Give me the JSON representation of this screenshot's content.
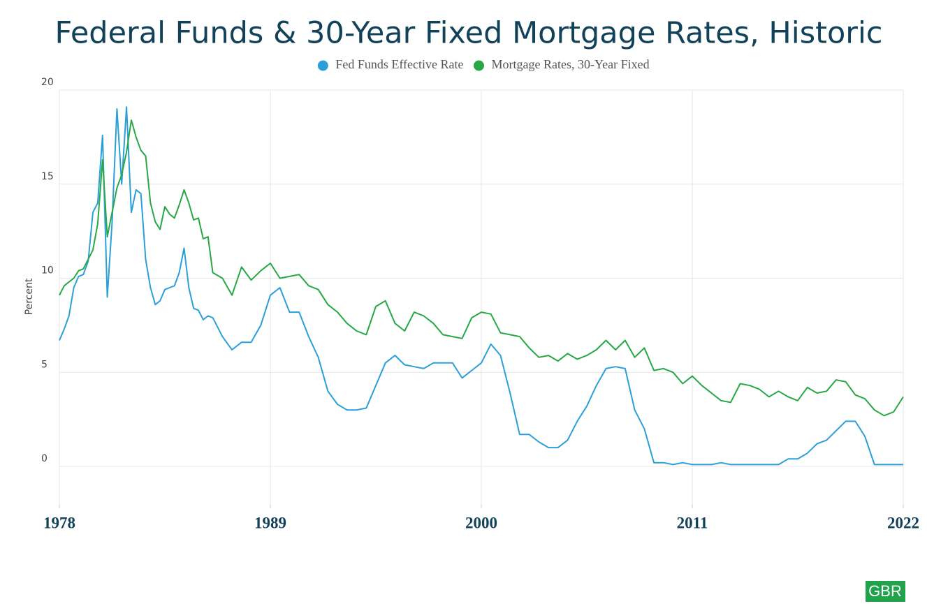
{
  "chart_data": {
    "type": "line",
    "title": "Federal Funds & 30-Year Fixed Mortgage Rates, Historic",
    "y_label": "Percent",
    "logo": "GBR",
    "xlim": [
      1978,
      2022
    ],
    "xticks": [
      1978,
      1989,
      2000,
      2011,
      2022
    ],
    "ylim": [
      -2,
      20
    ],
    "yticks": [
      0,
      5,
      10,
      15,
      20
    ],
    "grid": true,
    "legend": "top",
    "x": [
      1978,
      1978.25,
      1978.5,
      1978.75,
      1979,
      1979.25,
      1979.5,
      1979.75,
      1980,
      1980.25,
      1980.5,
      1980.75,
      1981,
      1981.25,
      1981.5,
      1981.75,
      1982,
      1982.25,
      1982.5,
      1982.75,
      1983,
      1983.25,
      1983.5,
      1983.75,
      1984,
      1984.25,
      1984.5,
      1984.75,
      1985,
      1985.25,
      1985.5,
      1985.75,
      1986,
      1986.5,
      1987,
      1987.5,
      1988,
      1988.5,
      1989,
      1989.5,
      1990,
      1990.5,
      1991,
      1991.5,
      1992,
      1992.5,
      1993,
      1993.5,
      1994,
      1994.5,
      1995,
      1995.5,
      1996,
      1996.5,
      1997,
      1997.5,
      1998,
      1998.5,
      1999,
      1999.5,
      2000,
      2000.5,
      2001,
      2001.5,
      2002,
      2002.5,
      2003,
      2003.5,
      2004,
      2004.5,
      2005,
      2005.5,
      2006,
      2006.5,
      2007,
      2007.5,
      2008,
      2008.5,
      2009,
      2009.5,
      2010,
      2010.5,
      2011,
      2011.5,
      2012,
      2012.5,
      2013,
      2013.5,
      2014,
      2014.5,
      2015,
      2015.5,
      2016,
      2016.5,
      2017,
      2017.5,
      2018,
      2018.5,
      2019,
      2019.5,
      2020,
      2020.5,
      2021,
      2021.5,
      2022
    ],
    "series": [
      {
        "name": "Fed Funds Effective Rate",
        "color": "#2b9fd8",
        "values": [
          6.7,
          7.3,
          8.0,
          9.5,
          10.1,
          10.2,
          10.9,
          13.5,
          14.0,
          17.6,
          9.0,
          13.0,
          19.0,
          15.0,
          19.1,
          13.5,
          14.7,
          14.5,
          11.0,
          9.5,
          8.6,
          8.8,
          9.4,
          9.5,
          9.6,
          10.3,
          11.6,
          9.5,
          8.4,
          8.3,
          7.8,
          8.0,
          7.9,
          6.9,
          6.2,
          6.6,
          6.6,
          7.5,
          9.1,
          9.5,
          8.2,
          8.2,
          6.9,
          5.8,
          4.0,
          3.3,
          3.0,
          3.0,
          3.1,
          4.3,
          5.5,
          5.9,
          5.4,
          5.3,
          5.2,
          5.5,
          5.5,
          5.5,
          4.7,
          5.1,
          5.5,
          6.5,
          5.9,
          3.9,
          1.7,
          1.7,
          1.3,
          1.0,
          1.0,
          1.4,
          2.4,
          3.2,
          4.3,
          5.2,
          5.3,
          5.2,
          3.0,
          2.0,
          0.2,
          0.2,
          0.1,
          0.2,
          0.1,
          0.1,
          0.1,
          0.2,
          0.1,
          0.1,
          0.1,
          0.1,
          0.1,
          0.1,
          0.4,
          0.4,
          0.7,
          1.2,
          1.4,
          1.9,
          2.4,
          2.4,
          1.6,
          0.1,
          0.1,
          0.1,
          0.1
        ]
      },
      {
        "name": "Mortgage Rates, 30-Year Fixed",
        "color": "#27a844",
        "values": [
          9.1,
          9.6,
          9.8,
          10.0,
          10.4,
          10.5,
          11.0,
          11.5,
          12.9,
          16.3,
          12.2,
          13.5,
          14.8,
          15.5,
          16.7,
          18.4,
          17.5,
          16.8,
          16.5,
          14.0,
          13.0,
          12.6,
          13.8,
          13.4,
          13.2,
          13.9,
          14.7,
          14.0,
          13.1,
          13.2,
          12.1,
          12.2,
          10.3,
          10.0,
          9.1,
          10.6,
          9.9,
          10.4,
          10.8,
          10.0,
          10.1,
          10.2,
          9.6,
          9.4,
          8.6,
          8.2,
          7.6,
          7.2,
          7.0,
          8.5,
          8.8,
          7.6,
          7.2,
          8.2,
          8.0,
          7.6,
          7.0,
          6.9,
          6.8,
          7.9,
          8.2,
          8.1,
          7.1,
          7.0,
          6.9,
          6.3,
          5.8,
          5.9,
          5.6,
          6.0,
          5.7,
          5.9,
          6.2,
          6.7,
          6.2,
          6.7,
          5.8,
          6.3,
          5.1,
          5.2,
          5.0,
          4.4,
          4.8,
          4.3,
          3.9,
          3.5,
          3.4,
          4.4,
          4.3,
          4.1,
          3.7,
          4.0,
          3.7,
          3.5,
          4.2,
          3.9,
          4.0,
          4.6,
          4.5,
          3.8,
          3.6,
          3.0,
          2.7,
          2.9,
          3.7
        ]
      }
    ]
  }
}
